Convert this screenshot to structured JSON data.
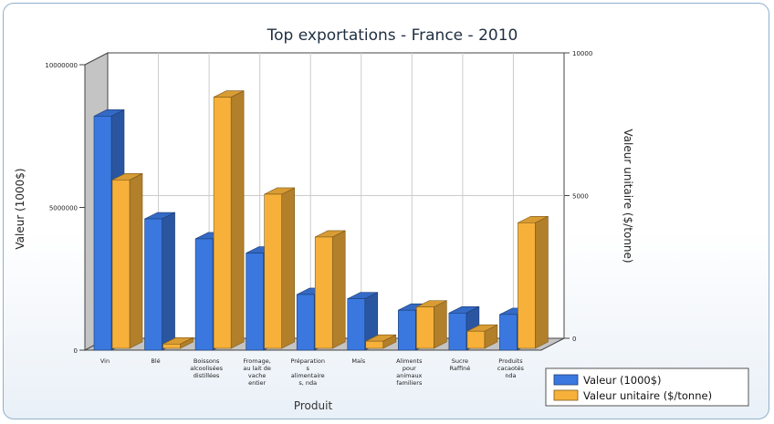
{
  "chart_data": {
    "type": "bar",
    "title": "Top exportations - France - 2010",
    "xlabel": "Produit",
    "ylabel": "Valeur (1000$)",
    "y2label": "Valeur unitaire ($/tonne)",
    "ylim": [
      0,
      10000000
    ],
    "y2lim": [
      0,
      10000
    ],
    "yticks": [
      "0",
      "5000000",
      "10000000"
    ],
    "y2ticks": [
      "0",
      "5000",
      "10000"
    ],
    "categories": [
      "Vin",
      "Blé",
      "Boissons alcoolisées distillées",
      "Fromage, au lait de vache entier",
      "Préparations alimentaires, nda",
      "Maïs",
      "Aliments pour animaux familiers",
      "Sucre Raffiné",
      "Produits cacaotés nda"
    ],
    "category_lines": [
      [
        "Vin"
      ],
      [
        "Blé"
      ],
      [
        "Boissons",
        "alcoolisées",
        "distillées"
      ],
      [
        "Fromage,",
        "au lait de",
        "vache",
        "entier"
      ],
      [
        "Préparation",
        "s",
        "alimentaire",
        "s, nda"
      ],
      [
        "Maïs"
      ],
      [
        "Aliments",
        "pour",
        "animaux",
        "familiers"
      ],
      [
        "Sucre",
        "Raffiné"
      ],
      [
        "Produits",
        "cacaotés",
        "nda"
      ]
    ],
    "series": [
      {
        "name": "Valeur (1000$)",
        "axis": "left",
        "color": "#3a78e0",
        "values": [
          8200000,
          4600000,
          3900000,
          3400000,
          1950000,
          1800000,
          1400000,
          1300000,
          1250000
        ]
      },
      {
        "name": "Valeur unitaire ($/tonne)",
        "axis": "right",
        "color": "#f7b13a",
        "values": [
          5900,
          150,
          8800,
          5400,
          3900,
          250,
          1450,
          600,
          4400
        ]
      }
    ],
    "legend_position": "bottom-right",
    "grid": true
  }
}
